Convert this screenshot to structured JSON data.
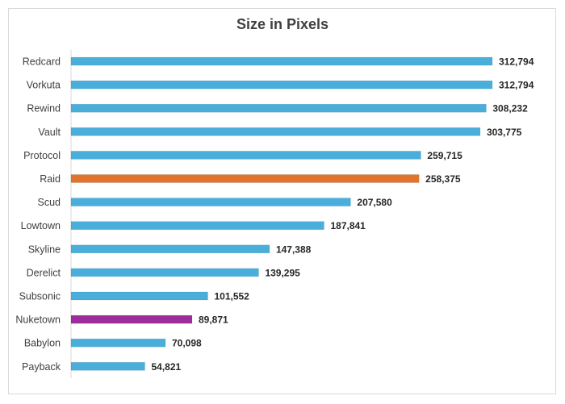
{
  "chart_data": {
    "type": "bar",
    "orientation": "horizontal",
    "title": "Size in Pixels",
    "xlabel": "",
    "ylabel": "",
    "xlim": [
      0,
      320000
    ],
    "grid": false,
    "legend": "none",
    "categories": [
      "Redcard",
      "Vorkuta",
      "Rewind",
      "Vault",
      "Protocol",
      "Raid",
      "Scud",
      "Lowtown",
      "Skyline",
      "Derelict",
      "Subsonic",
      "Nuketown",
      "Babylon",
      "Payback"
    ],
    "values": [
      312794,
      312794,
      308232,
      303775,
      259715,
      258375,
      207580,
      187841,
      147388,
      139295,
      101552,
      89871,
      70098,
      54821
    ],
    "value_labels": [
      "312,794",
      "312,794",
      "308,232",
      "303,775",
      "259,715",
      "258,375",
      "207,580",
      "187,841",
      "147,388",
      "139,295",
      "101,552",
      "89,871",
      "70,098",
      "54,821"
    ],
    "colors": {
      "default": "#4aaedb",
      "highlight": {
        "Raid": "#e0742f",
        "Nuketown": "#9c2d9a"
      }
    }
  }
}
